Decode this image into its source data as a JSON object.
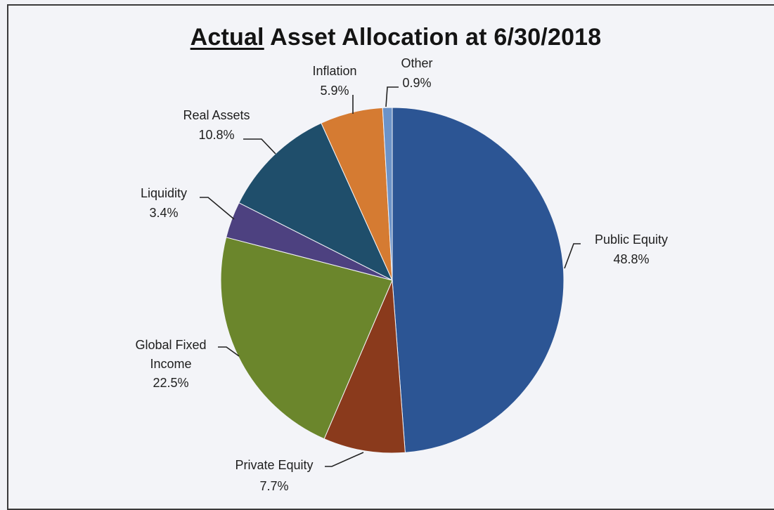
{
  "chart_data": {
    "type": "pie",
    "title_emphasis": "Actual",
    "title_rest": " Asset Allocation at 6/30/2018",
    "start_angle_deg": 0,
    "direction": "clockwise",
    "slices": [
      {
        "name": "Public Equity",
        "value": 48.8,
        "label": "48.8%",
        "color": "#2c5594"
      },
      {
        "name": "Private Equity",
        "value": 7.7,
        "label": "7.7%",
        "color": "#8a3a1c"
      },
      {
        "name": "Global Fixed Income",
        "name_lines": [
          "Global Fixed",
          "Income"
        ],
        "value": 22.5,
        "label": "22.5%",
        "color": "#6b862c"
      },
      {
        "name": "Liquidity",
        "value": 3.4,
        "label": "3.4%",
        "color": "#4d4180"
      },
      {
        "name": "Real Assets",
        "value": 10.8,
        "label": "10.8%",
        "color": "#1f4e6b"
      },
      {
        "name": "Inflation",
        "value": 5.9,
        "label": "5.9%",
        "color": "#d57b32"
      },
      {
        "name": "Other",
        "value": 0.9,
        "label": "0.9%",
        "color": "#6c93c8"
      }
    ]
  }
}
